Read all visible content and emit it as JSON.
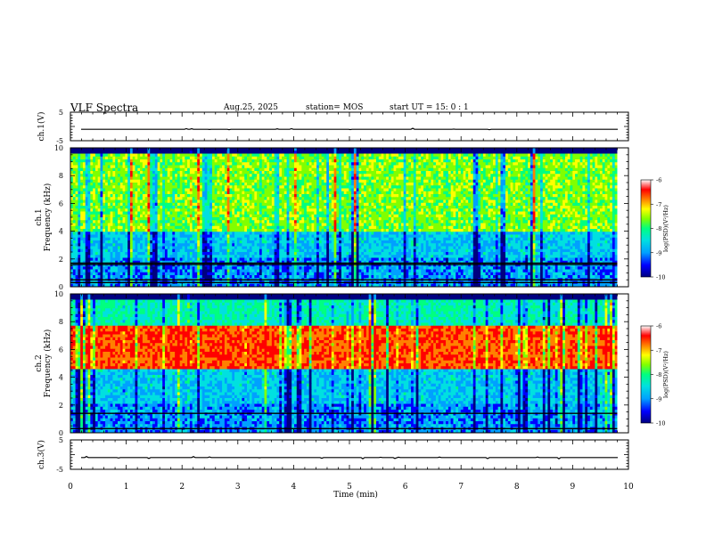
{
  "header": {
    "title": "VLF Spectra",
    "date": "Aug.25, 2025",
    "station": "station= MOS",
    "start": "start  UT =   15: 0  : 1"
  },
  "chart_data": {
    "type": "heatmap",
    "xlabel": "Time  (min)",
    "xlim": [
      0,
      10
    ],
    "x_ticks": [
      "0",
      "1",
      "2",
      "3",
      "4",
      "5",
      "6",
      "7",
      "8",
      "9",
      "10"
    ],
    "panels": [
      {
        "name": "ch.1(V)",
        "type": "line",
        "ylabel": "ch.1(V)",
        "ylim": [
          -5,
          5
        ],
        "y_ticks": [
          "5",
          "-5"
        ],
        "baseline": -1
      },
      {
        "name": "ch.1 spectrogram",
        "type": "heatmap",
        "ylabel_top": "ch.1",
        "ylabel": "Frequency  (kHz)",
        "ylim": [
          0,
          10
        ],
        "y_ticks": [
          "0",
          "2",
          "4",
          "6",
          "8",
          "10"
        ],
        "data_end_min": 9.8,
        "dominant_band_khz": [
          4,
          9.6
        ],
        "dark_band_khz": [
          9.6,
          10
        ],
        "lines_khz": [
          0.3,
          0.5,
          1.6,
          1.7
        ],
        "colorbar": {
          "label": "log(PSD)(V²/Hz)",
          "ticks": [
            "-6",
            "-7",
            "-8",
            "-9",
            "-10"
          ],
          "range": [
            -10,
            -6
          ]
        }
      },
      {
        "name": "ch.2 spectrogram",
        "type": "heatmap",
        "ylabel_top": "ch.2",
        "ylabel": "Frequency  (kHz)",
        "ylim": [
          0,
          10
        ],
        "y_ticks": [
          "0",
          "2",
          "4",
          "6",
          "8",
          "10"
        ],
        "data_end_min": 9.8,
        "dominant_band_khz": [
          4.5,
          7.8
        ],
        "dark_band_khz": [
          9.5,
          10
        ],
        "lines_khz": [
          0.3,
          1.4
        ],
        "colorbar": {
          "label": "log(PSD)(V²/Hz)",
          "ticks": [
            "-6",
            "-7",
            "-8",
            "-9",
            "-10"
          ],
          "range": [
            -10,
            -6
          ]
        }
      },
      {
        "name": "ch.3(V)",
        "type": "line",
        "ylabel": "ch.3(V)",
        "ylim": [
          -5,
          5
        ],
        "y_ticks": [
          "5",
          "-5"
        ],
        "baseline": -1
      }
    ],
    "colormap": [
      "#000080",
      "#0000ff",
      "#00a0ff",
      "#00e0e0",
      "#00ff80",
      "#80ff00",
      "#ffff00",
      "#ff8000",
      "#ff0000",
      "#ffffff"
    ]
  }
}
